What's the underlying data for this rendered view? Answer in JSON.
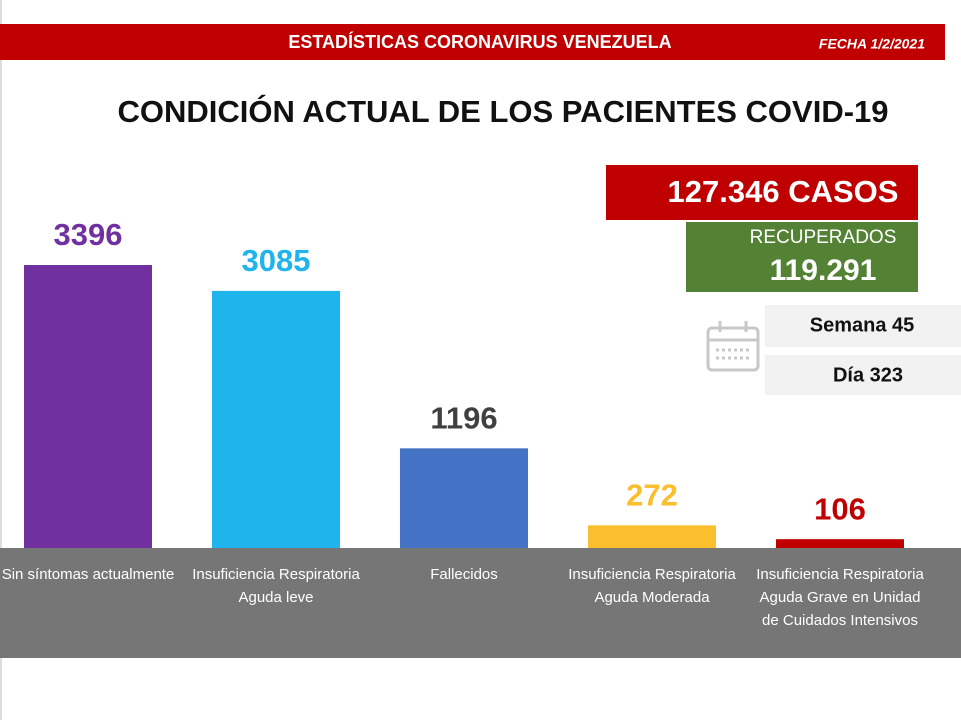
{
  "header": {
    "banner": "ESTADÍSTICAS CORONAVIRUS VENEZUELA",
    "date": "FECHA 1/2/2021",
    "cases": "127.346 CASOS",
    "recovered_label": "RECUPERADOS",
    "recovered_value": "119.291",
    "week": "Semana 45",
    "day": "Día 323"
  },
  "chart_data": {
    "type": "bar",
    "title": "CONDICIÓN ACTUAL DE LOS PACIENTES COVID-19",
    "categories": [
      "Sin síntomas actualmente",
      "Insuficiencia Respiratoria Aguda leve",
      "Fallecidos",
      "Insuficiencia Respiratoria Aguda Moderada",
      "Insuficiencia Respiratoria Aguda Grave en Unidad de Cuidados Intensivos"
    ],
    "values": [
      3396,
      3085,
      1196,
      272,
      106
    ],
    "colors": [
      "#7030a0",
      "#1fb4ec",
      "#4472c4",
      "#fbbf2d",
      "#c00000"
    ],
    "label_colors": [
      "#7030a0",
      "#1fb4ec",
      "#404040",
      "#fbbf2d",
      "#c00000"
    ]
  }
}
